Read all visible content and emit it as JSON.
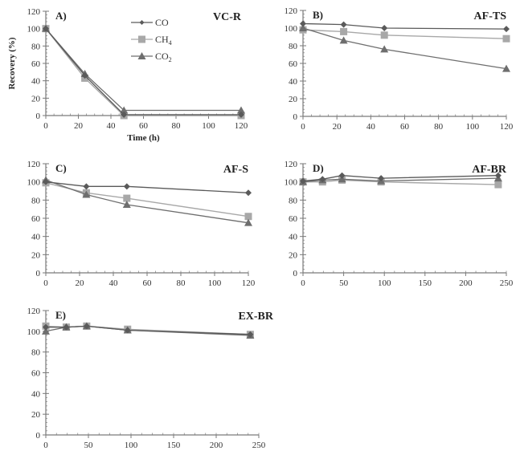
{
  "chart_data": [
    {
      "type": "line",
      "panel": "A)",
      "title": "VC-R",
      "xlabel": "Time (h)",
      "ylabel": "Recovery (%)",
      "xlim": [
        0,
        120
      ],
      "ylim": [
        0,
        120
      ],
      "xticks": [
        0,
        20,
        40,
        60,
        80,
        100,
        120
      ],
      "yticks": [
        0,
        20,
        40,
        60,
        80,
        100,
        120
      ],
      "legend": {
        "placement": "top-center",
        "entries": [
          "CO",
          "CH4",
          "CO2"
        ]
      },
      "series": [
        {
          "name": "CO",
          "x": [
            0,
            24,
            48,
            120
          ],
          "y": [
            100,
            46,
            1,
            1
          ]
        },
        {
          "name": "CH4",
          "x": [
            0,
            24,
            48,
            120
          ],
          "y": [
            100,
            43,
            0,
            0
          ]
        },
        {
          "name": "CO2",
          "x": [
            0,
            24,
            48,
            120
          ],
          "y": [
            100,
            48,
            6,
            6
          ]
        }
      ]
    },
    {
      "type": "line",
      "panel": "B)",
      "title": "AF-TS",
      "xlabel": "",
      "ylabel": "",
      "xlim": [
        0,
        120
      ],
      "ylim": [
        0,
        120
      ],
      "xticks": [
        0,
        20,
        40,
        60,
        80,
        100,
        120
      ],
      "yticks": [
        0,
        20,
        40,
        60,
        80,
        100,
        120
      ],
      "series": [
        {
          "name": "CO",
          "x": [
            0,
            24,
            48,
            120
          ],
          "y": [
            105,
            104,
            100,
            99
          ]
        },
        {
          "name": "CH4",
          "x": [
            0,
            24,
            48,
            120
          ],
          "y": [
            98,
            96,
            92,
            88
          ]
        },
        {
          "name": "CO2",
          "x": [
            0,
            24,
            48,
            120
          ],
          "y": [
            100,
            86,
            76,
            54
          ]
        }
      ]
    },
    {
      "type": "line",
      "panel": "C)",
      "title": "AF-S",
      "xlabel": "",
      "ylabel": "",
      "xlim": [
        0,
        120
      ],
      "ylim": [
        0,
        120
      ],
      "xticks": [
        0,
        20,
        40,
        60,
        80,
        100,
        120
      ],
      "yticks": [
        0,
        20,
        40,
        60,
        80,
        100,
        120
      ],
      "series": [
        {
          "name": "CO",
          "x": [
            0,
            24,
            48,
            120
          ],
          "y": [
            100,
            95,
            95,
            88
          ]
        },
        {
          "name": "CH4",
          "x": [
            0,
            24,
            48,
            120
          ],
          "y": [
            99,
            88,
            82,
            62
          ]
        },
        {
          "name": "CO2",
          "x": [
            0,
            24,
            48,
            120
          ],
          "y": [
            102,
            86,
            75,
            55
          ]
        }
      ]
    },
    {
      "type": "line",
      "panel": "D)",
      "title": "AF-BR",
      "xlabel": "",
      "ylabel": "",
      "xlim": [
        0,
        250
      ],
      "ylim": [
        0,
        120
      ],
      "xticks": [
        0,
        50,
        100,
        150,
        200,
        250
      ],
      "yticks": [
        0,
        20,
        40,
        60,
        80,
        100,
        120
      ],
      "series": [
        {
          "name": "CO",
          "x": [
            0,
            24,
            48,
            96,
            240
          ],
          "y": [
            101,
            103,
            107,
            104,
            107
          ]
        },
        {
          "name": "CH4",
          "x": [
            0,
            24,
            48,
            96,
            240
          ],
          "y": [
            100,
            100,
            102,
            100,
            97
          ]
        },
        {
          "name": "CO2",
          "x": [
            0,
            24,
            48,
            96,
            240
          ],
          "y": [
            100,
            102,
            103,
            101,
            104
          ]
        }
      ]
    },
    {
      "type": "line",
      "panel": "E)",
      "title": "EX-BR",
      "xlabel": "",
      "ylabel": "",
      "xlim": [
        0,
        250
      ],
      "ylim": [
        0,
        120
      ],
      "xticks": [
        0,
        50,
        100,
        150,
        200,
        250
      ],
      "yticks": [
        0,
        20,
        40,
        60,
        80,
        100,
        120
      ],
      "series": [
        {
          "name": "CO",
          "x": [
            0,
            24,
            48,
            96,
            240
          ],
          "y": [
            104,
            104,
            105,
            101,
            97
          ]
        },
        {
          "name": "CH4",
          "x": [
            0,
            24,
            48,
            96,
            240
          ],
          "y": [
            105,
            104,
            105,
            102,
            97
          ]
        },
        {
          "name": "CO2",
          "x": [
            0,
            24,
            48,
            96,
            240
          ],
          "y": [
            100,
            104,
            105,
            101,
            96
          ]
        }
      ]
    }
  ],
  "legend_labels": {
    "co": "CO",
    "ch4_base": "CH",
    "ch4_sub": "4",
    "co2_base": "CO",
    "co2_sub": "2"
  },
  "colors": {
    "CO": "#5a5a5a",
    "CH4": "#a8a8a8",
    "CO2": "#6e6e6e",
    "axis": "#7a7a7a"
  }
}
